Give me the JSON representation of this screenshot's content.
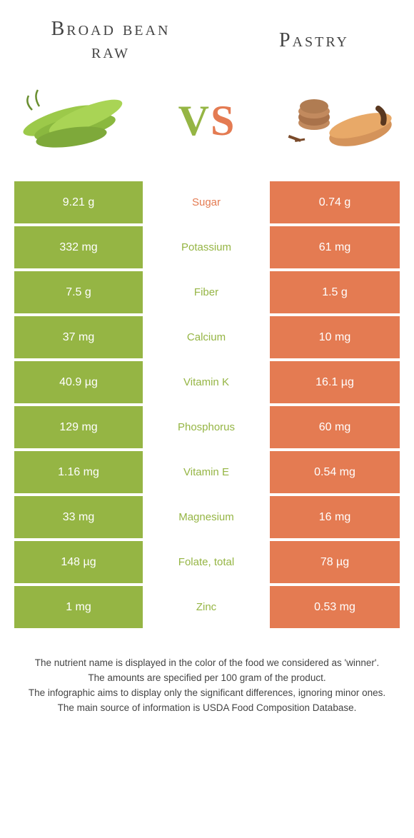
{
  "header": {
    "left_title_line1": "Broad bean",
    "left_title_line2": "raw",
    "right_title": "Pastry",
    "vs_v": "V",
    "vs_s": "S"
  },
  "colors": {
    "green": "#95b544",
    "orange": "#e47b52",
    "mid_green_text": "#95b544",
    "mid_orange_text": "#e47b52"
  },
  "rows": [
    {
      "left": "9.21 g",
      "label": "Sugar",
      "right": "0.74 g",
      "label_color": "#e47b52"
    },
    {
      "left": "332 mg",
      "label": "Potassium",
      "right": "61 mg",
      "label_color": "#95b544"
    },
    {
      "left": "7.5 g",
      "label": "Fiber",
      "right": "1.5 g",
      "label_color": "#95b544"
    },
    {
      "left": "37 mg",
      "label": "Calcium",
      "right": "10 mg",
      "label_color": "#95b544"
    },
    {
      "left": "40.9 µg",
      "label": "Vitamin K",
      "right": "16.1 µg",
      "label_color": "#95b544"
    },
    {
      "left": "129 mg",
      "label": "Phosphorus",
      "right": "60 mg",
      "label_color": "#95b544"
    },
    {
      "left": "1.16 mg",
      "label": "Vitamin E",
      "right": "0.54 mg",
      "label_color": "#95b544"
    },
    {
      "left": "33 mg",
      "label": "Magnesium",
      "right": "16 mg",
      "label_color": "#95b544"
    },
    {
      "left": "148 µg",
      "label": "Folate, total",
      "right": "78 µg",
      "label_color": "#95b544"
    },
    {
      "left": "1 mg",
      "label": "Zinc",
      "right": "0.53 mg",
      "label_color": "#95b544"
    }
  ],
  "footer": {
    "line1": "The nutrient name is displayed in the color of the food we considered as 'winner'.",
    "line2": "The amounts are specified per 100 gram of the product.",
    "line3": "The infographic aims to display only the significant differences, ignoring minor ones.",
    "line4": "The main source of information is USDA Food Composition Database."
  }
}
